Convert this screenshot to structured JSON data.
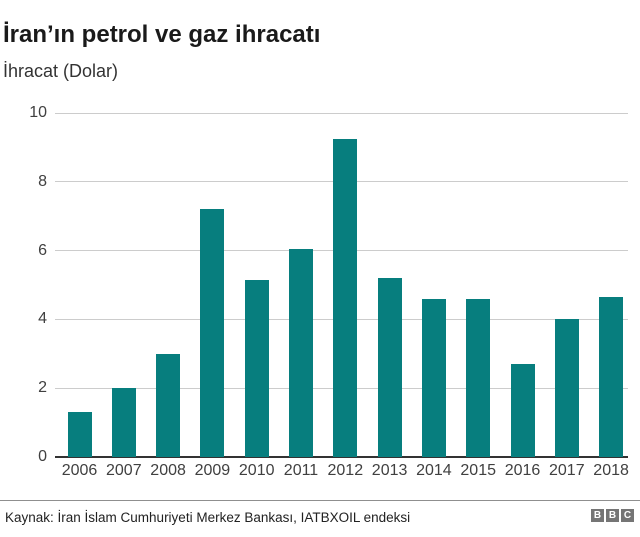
{
  "header": {
    "title": "İran’ın petrol ve gaz ihracatı",
    "subtitle": "İhracat (Dolar)"
  },
  "chart_data": {
    "type": "bar",
    "categories": [
      "2006",
      "2007",
      "2008",
      "2009",
      "2010",
      "2011",
      "2012",
      "2013",
      "2014",
      "2015",
      "2016",
      "2017",
      "2018"
    ],
    "values": [
      1.3,
      2.0,
      3.0,
      7.2,
      5.15,
      6.05,
      9.25,
      5.2,
      4.6,
      4.6,
      2.7,
      4.0,
      4.65
    ],
    "title": "İran’ın petrol ve gaz ihracatı",
    "xlabel": "",
    "ylabel": "İhracat (Dolar)",
    "ylim": [
      0,
      10
    ],
    "yticks": [
      0,
      2,
      4,
      6,
      8,
      10
    ],
    "grid": true,
    "legend": "none",
    "bar_color": "#077e7e",
    "gridline_color": "#cccccc",
    "axis_line_color": "#333333",
    "tick_label_color": "#404040"
  },
  "footer": {
    "source": "Kaynak: İran İslam Cumhuriyeti Merkez Bankası, IATBXOIL endeksi",
    "logo_letters": [
      "B",
      "B",
      "C"
    ]
  }
}
